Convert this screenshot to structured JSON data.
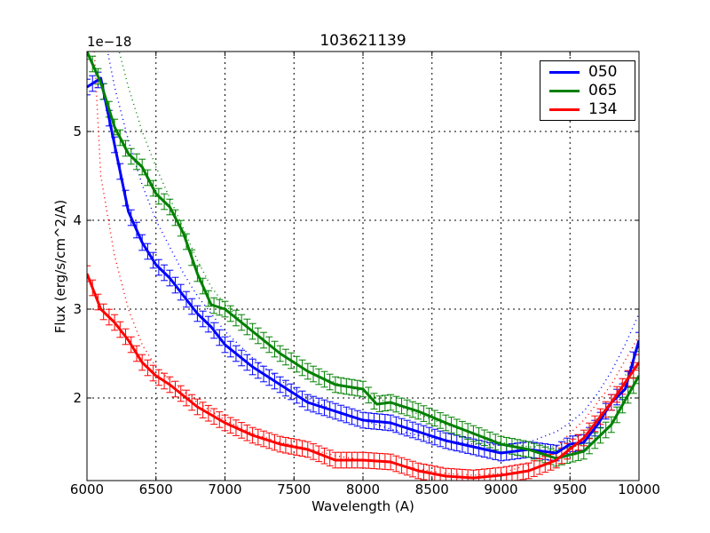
{
  "chart_data": {
    "type": "line",
    "title": "103621139",
    "xlabel": "Wavelength (A)",
    "ylabel": "Flux (erg/s/cm^2/A)",
    "y_offset_label": "1e−18",
    "xlim": [
      6000,
      10000
    ],
    "ylim": [
      1.07,
      5.9
    ],
    "x_ticks": [
      6000,
      6500,
      7000,
      7500,
      8000,
      8500,
      9000,
      9500,
      10000
    ],
    "y_ticks": [
      2,
      3,
      4,
      5
    ],
    "grid": true,
    "legend_position": "upper right",
    "series": [
      {
        "name": "050",
        "color": "#0000ff",
        "x": [
          6000,
          6100,
          6200,
          6300,
          6400,
          6500,
          6600,
          6700,
          6800,
          6900,
          7000,
          7200,
          7400,
          7600,
          7800,
          8000,
          8200,
          8400,
          8600,
          8800,
          9000,
          9200,
          9400,
          9500,
          9600,
          9700,
          9800,
          9900,
          10000
        ],
        "values": [
          5.5,
          5.6,
          4.85,
          4.1,
          3.75,
          3.5,
          3.35,
          3.15,
          2.95,
          2.8,
          2.6,
          2.35,
          2.15,
          1.95,
          1.85,
          1.75,
          1.72,
          1.62,
          1.52,
          1.45,
          1.38,
          1.42,
          1.38,
          1.48,
          1.5,
          1.7,
          1.95,
          2.1,
          2.65
        ],
        "model_fit": [
          7.2,
          6.3,
          5.5,
          4.9,
          4.4,
          4.0,
          3.7,
          3.4,
          3.15,
          2.95,
          2.75,
          2.45,
          2.2,
          2.0,
          1.85,
          1.75,
          1.65,
          1.58,
          1.52,
          1.48,
          1.47,
          1.5,
          1.62,
          1.72,
          1.85,
          2.05,
          2.3,
          2.6,
          2.95
        ]
      },
      {
        "name": "065",
        "color": "#008000",
        "x": [
          6000,
          6100,
          6200,
          6300,
          6400,
          6500,
          6600,
          6700,
          6800,
          6900,
          7000,
          7200,
          7400,
          7600,
          7800,
          8000,
          8100,
          8200,
          8400,
          8600,
          8800,
          9000,
          9200,
          9400,
          9600,
          9800,
          10000
        ],
        "values": [
          5.9,
          5.55,
          5.05,
          4.75,
          4.6,
          4.3,
          4.15,
          3.85,
          3.4,
          3.05,
          3.0,
          2.75,
          2.5,
          2.3,
          2.15,
          2.1,
          1.93,
          1.95,
          1.85,
          1.72,
          1.6,
          1.48,
          1.42,
          1.32,
          1.4,
          1.7,
          2.25
        ],
        "model_fit": [
          7.6,
          6.8,
          6.1,
          5.5,
          5.0,
          4.6,
          4.25,
          3.9,
          3.55,
          3.25,
          3.05,
          2.75,
          2.5,
          2.3,
          2.17,
          2.07,
          2.0,
          1.94,
          1.82,
          1.7,
          1.6,
          1.5,
          1.45,
          1.45,
          1.6,
          1.95,
          2.55
        ]
      },
      {
        "name": "134",
        "color": "#ff0000",
        "x": [
          6000,
          6100,
          6200,
          6300,
          6400,
          6500,
          6600,
          6800,
          7000,
          7200,
          7400,
          7600,
          7800,
          8000,
          8200,
          8400,
          8600,
          8800,
          9000,
          9200,
          9400,
          9600,
          9800,
          10000
        ],
        "values": [
          3.4,
          3.0,
          2.85,
          2.65,
          2.4,
          2.25,
          2.15,
          1.9,
          1.72,
          1.58,
          1.48,
          1.42,
          1.3,
          1.3,
          1.28,
          1.18,
          1.12,
          1.1,
          1.13,
          1.18,
          1.3,
          1.55,
          1.95,
          2.4
        ],
        "model_fit": [
          7.5,
          4.5,
          3.6,
          3.0,
          2.6,
          2.35,
          2.2,
          1.95,
          1.75,
          1.6,
          1.5,
          1.43,
          1.35,
          1.3,
          1.27,
          1.2,
          1.15,
          1.13,
          1.15,
          1.25,
          1.45,
          1.75,
          2.15,
          2.7
        ]
      }
    ]
  }
}
